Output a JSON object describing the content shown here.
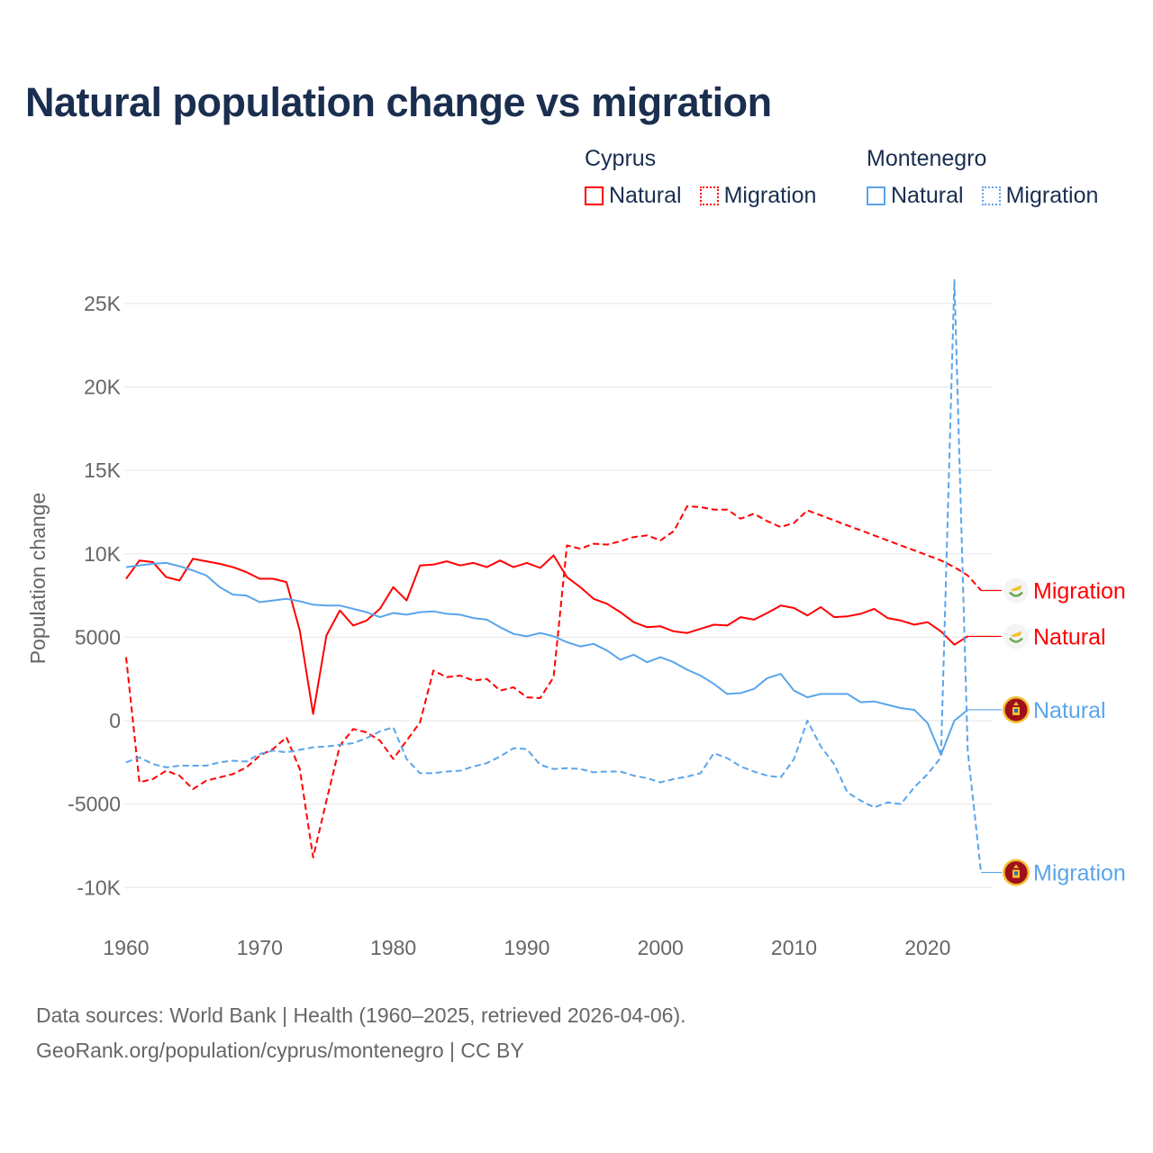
{
  "title": "Natural population change vs migration",
  "legend": {
    "groups": [
      {
        "name": "Cyprus",
        "items": [
          "Natural",
          "Migration"
        ],
        "color": "#ff0000"
      },
      {
        "name": "Montenegro",
        "items": [
          "Natural",
          "Migration"
        ],
        "color": "#5aa5ea"
      }
    ]
  },
  "footer": {
    "line1": "Data sources: World Bank | Health (1960–2025, retrieved 2026-04-06).",
    "line2": "GeoRank.org/population/cyprus/montenegro | CC BY"
  },
  "chart_data": {
    "type": "line",
    "title": "Natural population change vs migration",
    "xlabel": "",
    "ylabel": "Population change",
    "xlim": [
      1960,
      2025
    ],
    "ylim": [
      -10000,
      26500
    ],
    "x_ticks": [
      1960,
      1970,
      1980,
      1990,
      2000,
      2010,
      2020
    ],
    "x_tick_labels": [
      "1960",
      "1970",
      "1980",
      "1990",
      "2000",
      "2010",
      "2020"
    ],
    "y_ticks": [
      25000,
      20000,
      15000,
      10000,
      5000,
      0,
      -5000,
      -10000
    ],
    "y_tick_labels": [
      "25K",
      "20K",
      "15K",
      "10K",
      "5000",
      "0",
      "-5000",
      "-10K"
    ],
    "grid": true,
    "legend_position": "top-right",
    "series": [
      {
        "name": "Cyprus Natural",
        "end_label": "Natural",
        "country": "Cyprus",
        "color": "#ff0000",
        "dashed": false,
        "start": 1960,
        "values": [
          8500,
          9600,
          9500,
          8600,
          8400,
          9700,
          9550,
          9400,
          9200,
          8900,
          8500,
          8500,
          8300,
          5400,
          400,
          5100,
          6600,
          5700,
          6000,
          6700,
          8000,
          7200,
          9300,
          9350,
          9550,
          9300,
          9450,
          9200,
          9600,
          9200,
          9450,
          9150,
          9900,
          8600,
          8000,
          7300,
          7000,
          6500,
          5900,
          5600,
          5650,
          5350,
          5250,
          5500,
          5750,
          5700,
          6200,
          6050,
          6450,
          6900,
          6750,
          6300,
          6800,
          6200,
          6250,
          6400,
          6700,
          6150,
          6000,
          5750,
          5900,
          5350,
          4550,
          5050
        ]
      },
      {
        "name": "Cyprus Migration",
        "end_label": "Migration",
        "country": "Cyprus",
        "color": "#ff0000",
        "dashed": true,
        "start": 1960,
        "values": [
          3800,
          -3700,
          -3500,
          -3000,
          -3300,
          -4100,
          -3600,
          -3400,
          -3200,
          -2800,
          -2100,
          -1700,
          -1000,
          -2900,
          -8200,
          -4800,
          -1500,
          -500,
          -700,
          -1200,
          -2300,
          -1200,
          -100,
          3000,
          2600,
          2700,
          2400,
          2500,
          1800,
          2000,
          1400,
          1350,
          2600,
          10500,
          10300,
          10600,
          10550,
          10750,
          11000,
          11100,
          10800,
          11350,
          12850,
          12800,
          12650,
          12650,
          12100,
          12400,
          11950,
          11600,
          11850,
          12600,
          12300,
          12000,
          11700,
          11400,
          11100,
          10800,
          10500,
          10200,
          9900,
          9600,
          9200,
          8700,
          7800
        ]
      },
      {
        "name": "Montenegro Natural",
        "end_label": "Natural",
        "country": "Montenegro",
        "color": "#5aa5ea",
        "dashed": false,
        "start": 1960,
        "values": [
          9200,
          9300,
          9400,
          9450,
          9250,
          9000,
          8700,
          8000,
          7550,
          7500,
          7100,
          7200,
          7300,
          7150,
          6950,
          6900,
          6900,
          6700,
          6500,
          6200,
          6450,
          6350,
          6500,
          6550,
          6400,
          6350,
          6150,
          6050,
          5600,
          5200,
          5050,
          5250,
          5050,
          4700,
          4450,
          4600,
          4200,
          3650,
          3950,
          3500,
          3800,
          3500,
          3050,
          2700,
          2200,
          1600,
          1650,
          1900,
          2550,
          2800,
          1800,
          1400,
          1600,
          1600,
          1600,
          1100,
          1150,
          950,
          750,
          650,
          -150,
          -2050,
          0,
          650
        ]
      },
      {
        "name": "Montenegro Migration",
        "end_label": "Migration",
        "country": "Montenegro",
        "color": "#5aa5ea",
        "dashed": true,
        "start": 1960,
        "values": [
          -2500,
          -2200,
          -2600,
          -2800,
          -2700,
          -2700,
          -2700,
          -2500,
          -2400,
          -2450,
          -2000,
          -1800,
          -1900,
          -1750,
          -1600,
          -1550,
          -1450,
          -1350,
          -1050,
          -650,
          -400,
          -2300,
          -3150,
          -3150,
          -3050,
          -3000,
          -2750,
          -2550,
          -2150,
          -1650,
          -1700,
          -2650,
          -2900,
          -2850,
          -2900,
          -3100,
          -3050,
          -3050,
          -3300,
          -3450,
          -3700,
          -3500,
          -3350,
          -3150,
          -1950,
          -2250,
          -2750,
          -3050,
          -3300,
          -3400,
          -2300,
          0,
          -1550,
          -2600,
          -4300,
          -4800,
          -5200,
          -4900,
          -5000,
          -4000,
          -3200,
          -2200,
          26400,
          -1800,
          -9100
        ]
      }
    ]
  }
}
